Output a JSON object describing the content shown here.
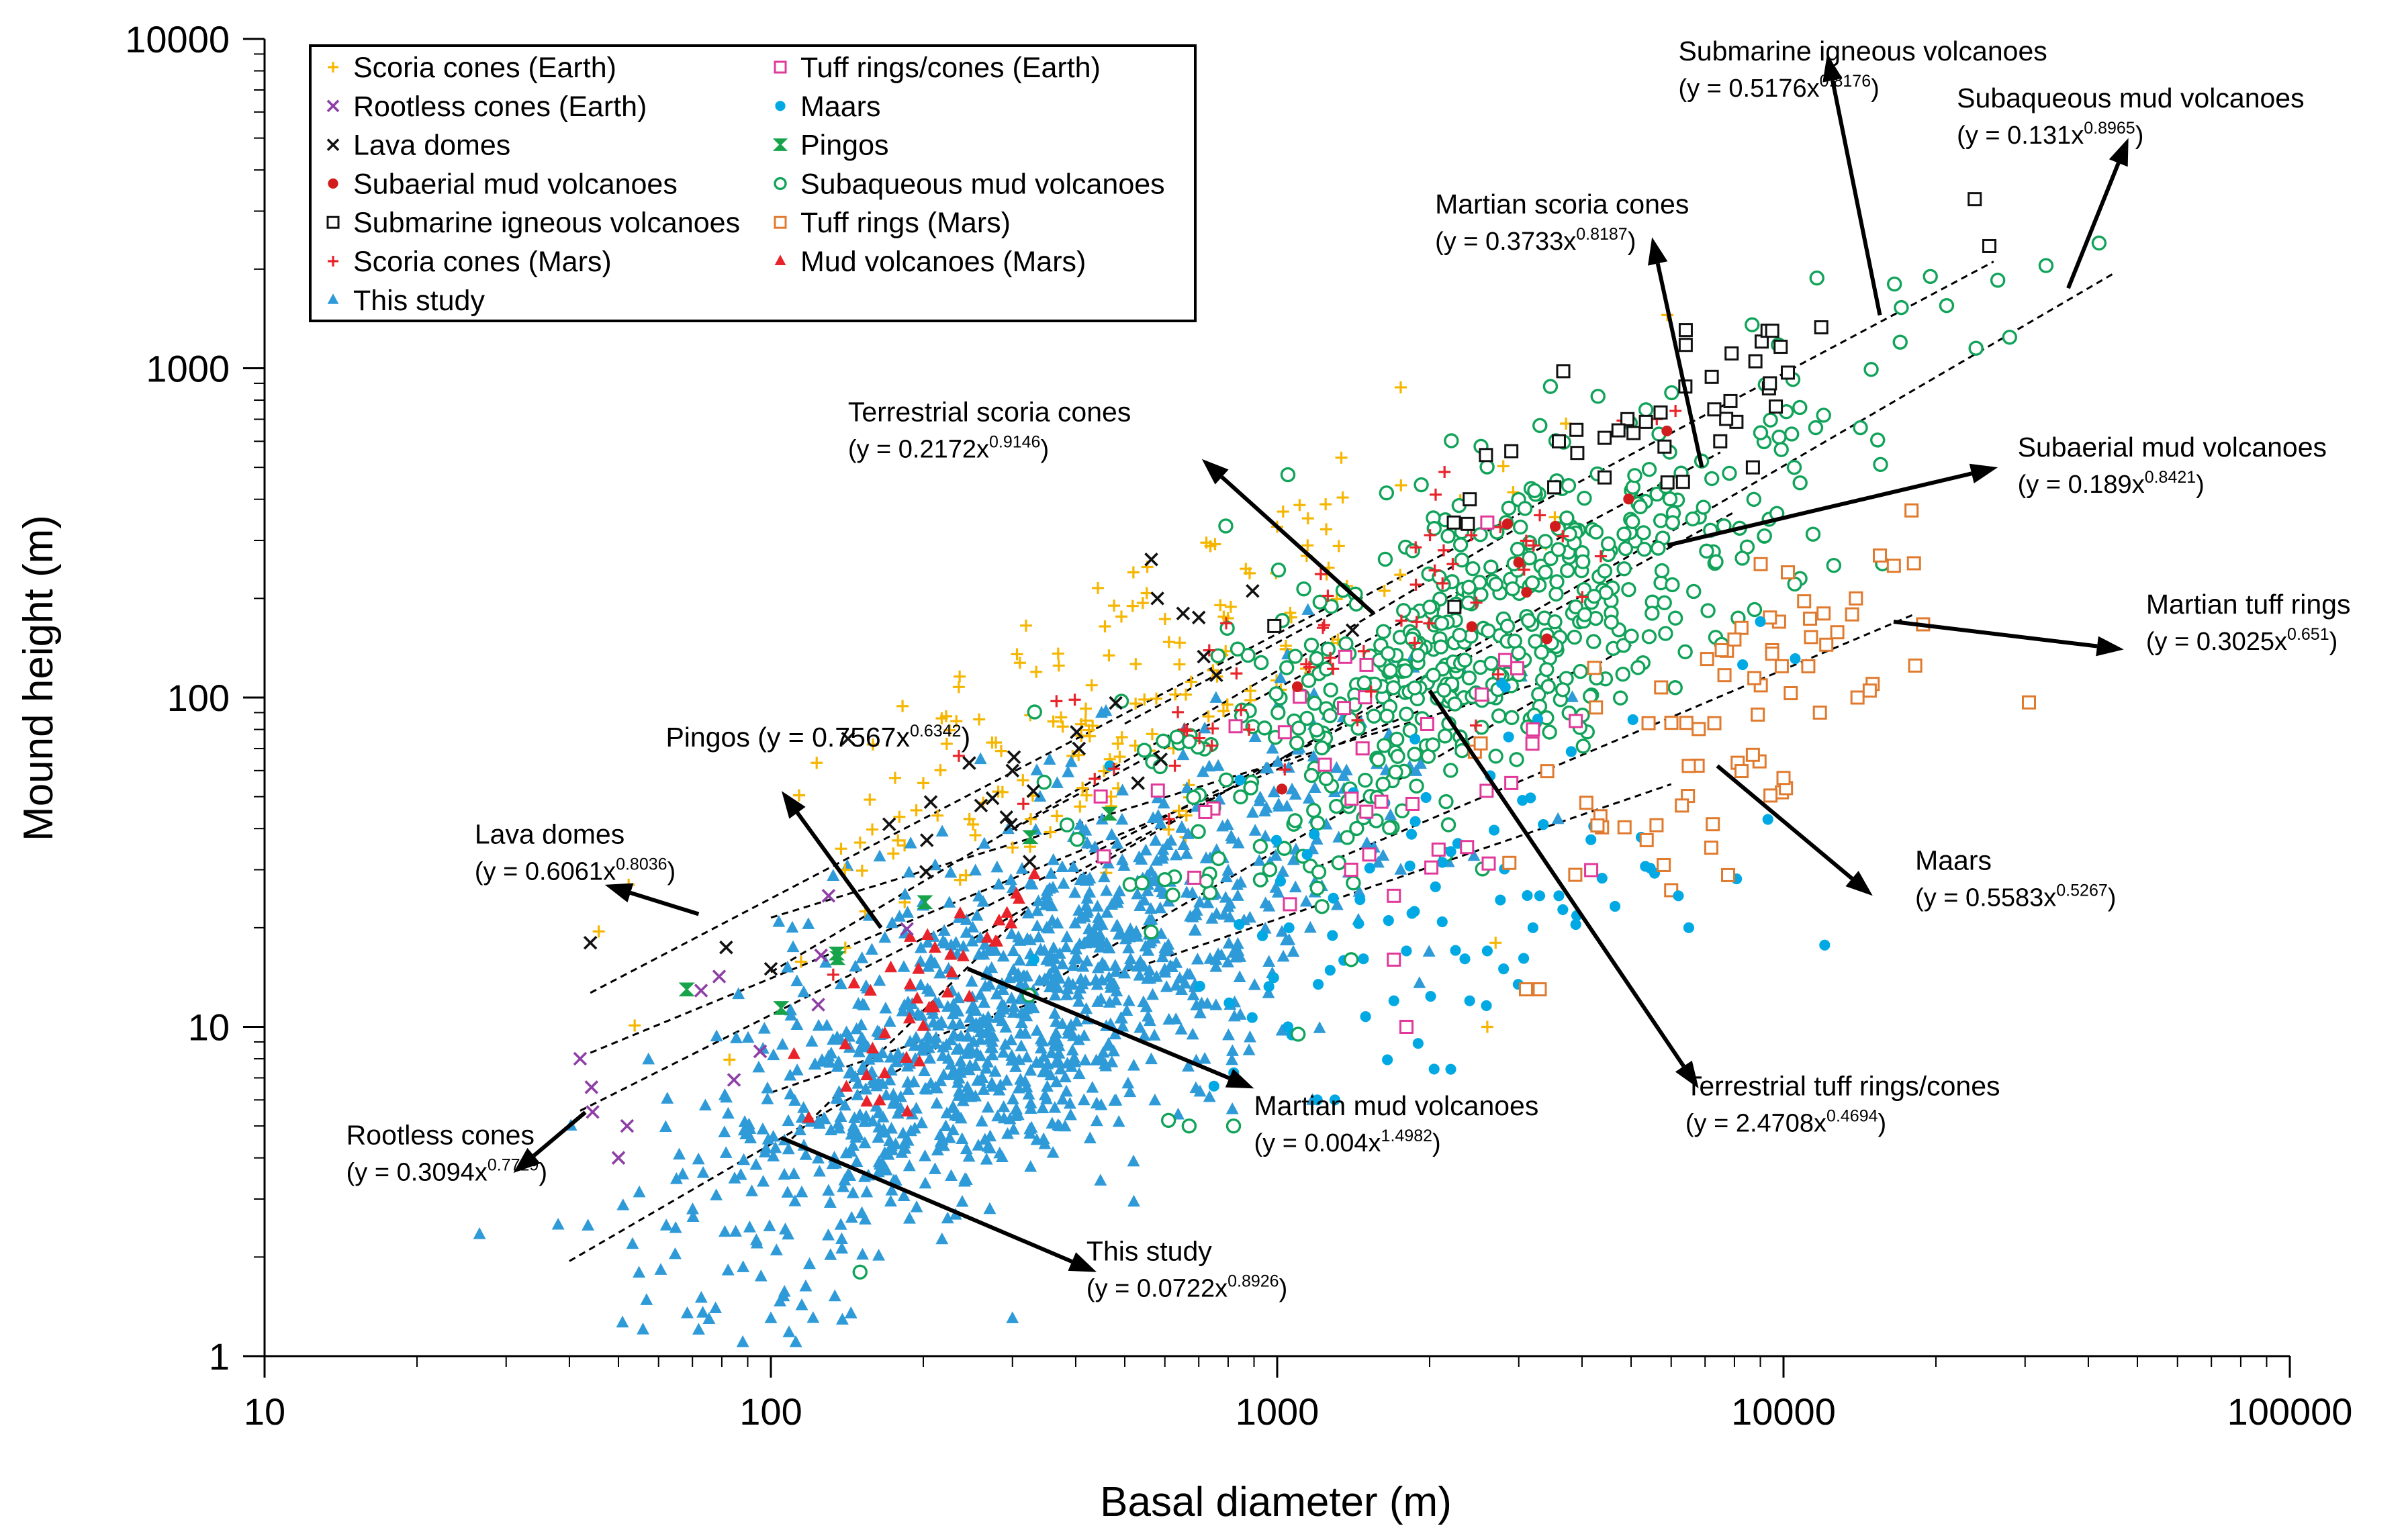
{
  "chart_data": {
    "type": "scatter",
    "title": "",
    "xlabel": "Basal diameter (m)",
    "ylabel": "Mound height (m)",
    "xscale": "log",
    "yscale": "log",
    "xlim": [
      10,
      100000
    ],
    "ylim": [
      1,
      10000
    ],
    "x_ticks": [
      "10",
      "100",
      "1000",
      "10000",
      "100000"
    ],
    "y_ticks": [
      "1",
      "10",
      "100",
      "1000",
      "10000"
    ],
    "grid": false,
    "legend_position": "top-left",
    "legend": [
      {
        "label": "Scoria cones (Earth)",
        "marker": "plus",
        "color": "#f6b600"
      },
      {
        "label": "Tuff rings/cones (Earth)",
        "marker": "open-square",
        "color": "#e0399a"
      },
      {
        "label": "Rootless cones (Earth)",
        "marker": "cross",
        "color": "#8e3fa6"
      },
      {
        "label": "Maars",
        "marker": "dot",
        "color": "#00a9e3"
      },
      {
        "label": "Lava domes",
        "marker": "cross",
        "color": "#111111"
      },
      {
        "label": "Pingos",
        "marker": "bowtie",
        "color": "#16a34a"
      },
      {
        "label": "Subaerial mud volcanoes",
        "marker": "dot",
        "color": "#d01c1c"
      },
      {
        "label": "Subaqueous mud volcanoes",
        "marker": "open-circle",
        "color": "#12a35a"
      },
      {
        "label": "Submarine igneous volcanoes",
        "marker": "open-square",
        "color": "#111111"
      },
      {
        "label": "Tuff rings (Mars)",
        "marker": "open-square",
        "color": "#e07a2e"
      },
      {
        "label": "Scoria cones (Mars)",
        "marker": "plus",
        "color": "#e8232a"
      },
      {
        "label": "Mud volcanoes (Mars)",
        "marker": "triangle",
        "color": "#e8232a"
      },
      {
        "label": "This study",
        "marker": "triangle",
        "color": "#2e9ad8"
      }
    ],
    "fits": [
      {
        "name": "Pingos",
        "a": 0.7567,
        "b": 0.6342,
        "x_range": [
          44,
          1900
        ]
      },
      {
        "name": "Lava domes",
        "a": 0.6061,
        "b": 0.8036,
        "x_range": [
          44,
          1300
        ]
      },
      {
        "name": "Rootless cones",
        "a": 0.3094,
        "b": 0.7729,
        "x_range": [
          42,
          1400
        ]
      },
      {
        "name": "Terrestrial scoria cones",
        "a": 0.2172,
        "b": 0.9146,
        "x_range": [
          100,
          3000
        ]
      },
      {
        "name": "Martian scoria cones",
        "a": 0.3733,
        "b": 0.8187,
        "x_range": [
          300,
          7500
        ]
      },
      {
        "name": "Submarine igneous volcanoes",
        "a": 0.5176,
        "b": 0.8176,
        "x_range": [
          500,
          26000
        ]
      },
      {
        "name": "Subaqueous mud volcanoes",
        "a": 0.131,
        "b": 0.8965,
        "x_range": [
          250,
          45000
        ]
      },
      {
        "name": "Subaerial mud volcanoes",
        "a": 0.189,
        "b": 0.8421,
        "x_range": [
          400,
          8000
        ]
      },
      {
        "name": "Martian tuff rings",
        "a": 0.3025,
        "b": 0.651,
        "x_range": [
          1200,
          18000
        ]
      },
      {
        "name": "Maars",
        "a": 0.5583,
        "b": 0.5267,
        "x_range": [
          100,
          6000
        ]
      },
      {
        "name": "Terrestrial tuff rings/cones",
        "a": 2.4708,
        "b": 0.4694,
        "x_range": [
          100,
          4000
        ]
      },
      {
        "name": "Martian mud volcanoes",
        "a": 0.004,
        "b": 1.4982,
        "x_range": [
          110,
          320
        ]
      },
      {
        "name": "This study",
        "a": 0.0722,
        "b": 0.8926,
        "x_range": [
          40,
          5000
        ]
      }
    ],
    "annotations": [
      {
        "name": "Submarine igneous volcanoes",
        "eq_prefix": "(y = 0.5176x",
        "exponent": "0.8176",
        "eq_suffix": ")",
        "arrow_from": [
          15500,
          1450
        ],
        "arrow_to": [
          12200,
          9000
        ],
        "label_anchor": [
          6200,
          8600
        ]
      },
      {
        "name": "Subaqueous mud volcanoes",
        "eq_prefix": "(y = 0.131x",
        "exponent": "0.8965",
        "eq_suffix": ")",
        "arrow_from": [
          36500,
          1750
        ],
        "arrow_to": [
          48000,
          5000
        ],
        "label_anchor": [
          22000,
          6200
        ]
      },
      {
        "name": "Martian scoria cones",
        "eq_prefix": "(y = 0.3733x",
        "exponent": "0.8187",
        "eq_suffix": ")",
        "arrow_from": [
          6900,
          500
        ],
        "arrow_to": [
          5500,
          2500
        ],
        "label_anchor": [
          2050,
          2950
        ]
      },
      {
        "name": "Terrestrial scoria cones",
        "eq_prefix": "(y = 0.2172x",
        "exponent": "0.9146",
        "eq_suffix": ")",
        "arrow_from": [
          1550,
          180
        ],
        "arrow_to": [
          710,
          530
        ],
        "label_anchor": [
          142,
          690
        ]
      },
      {
        "name": "Subaerial mud volcanoes",
        "eq_prefix": "(y = 0.189x",
        "exponent": "0.8421",
        "eq_suffix": ")",
        "arrow_from": [
          5900,
          290
        ],
        "arrow_to": [
          26500,
          500
        ],
        "label_anchor": [
          29000,
          540
        ]
      },
      {
        "name": "Martian tuff rings",
        "eq_prefix": "(y = 0.3025x",
        "exponent": "0.651",
        "eq_suffix": ")",
        "arrow_from": [
          16500,
          170
        ],
        "arrow_to": [
          47000,
          140
        ],
        "label_anchor": [
          52000,
          180
        ]
      },
      {
        "name": "Pingos",
        "eq_prefix": "Pingos (y = 0.7567x",
        "exponent": "0.6342",
        "eq_suffix": ")",
        "arrow_from": [
          165,
          20
        ],
        "arrow_to": [
          105,
          52
        ],
        "label_anchor": [
          62,
          71
        ]
      },
      {
        "name": "Lava domes",
        "eq_prefix": "(y = 0.6061x",
        "exponent": "0.8036",
        "eq_suffix": ")",
        "arrow_from": [
          72,
          22
        ],
        "arrow_to": [
          47,
          27
        ],
        "label_anchor": [
          26,
          36
        ]
      },
      {
        "name": "Maars",
        "eq_prefix": "(y = 0.5583x",
        "exponent": "0.5267",
        "eq_suffix": ")",
        "arrow_from": [
          7400,
          62
        ],
        "arrow_to": [
          15000,
          25
        ],
        "label_anchor": [
          18200,
          30
        ]
      },
      {
        "name": "Terrestrial tuff rings/cones",
        "eq_prefix": "(y = 2.4708x",
        "exponent": "0.4694",
        "eq_suffix": ")",
        "arrow_from": [
          2000,
          105
        ],
        "arrow_to": [
          6800,
          6.5
        ],
        "label_anchor": [
          6400,
          6.2
        ]
      },
      {
        "name": "Martian mud volcanoes",
        "eq_prefix": "(y = 0.004x",
        "exponent": "1.4982",
        "eq_suffix": ")",
        "arrow_from": [
          245,
          15
        ],
        "arrow_to": [
          900,
          6.5
        ],
        "label_anchor": [
          900,
          5.4
        ]
      },
      {
        "name": "Rootless cones",
        "eq_prefix": "(y = 0.3094x",
        "exponent": "0.7729",
        "eq_suffix": ")",
        "arrow_from": [
          43,
          5.5
        ],
        "arrow_to": [
          31,
          3.6
        ],
        "label_anchor": [
          14.5,
          4.4
        ]
      },
      {
        "name": "This study",
        "eq_prefix": "(y = 0.0722x",
        "exponent": "0.8926",
        "eq_suffix": ")",
        "arrow_from": [
          105,
          4.6
        ],
        "arrow_to": [
          440,
          1.8
        ],
        "label_anchor": [
          420,
          1.95
        ]
      }
    ],
    "series": [
      {
        "name": "Scoria cones (Earth)",
        "marker": "plus",
        "color": "#f6b600",
        "count": 170,
        "center": [
          450,
          90
        ],
        "spread_x": 0.38,
        "slope": 0.85,
        "spread_y": 0.2
      },
      {
        "name": "This study",
        "marker": "triangle",
        "color": "#2e9ad8",
        "count": 1150,
        "center": [
          310,
          11
        ],
        "spread_x": 0.34,
        "slope": 0.9,
        "spread_y": 0.27
      },
      {
        "name": "Subaqueous mud volcanoes",
        "marker": "open-circle",
        "color": "#12a35a",
        "count": 520,
        "center": [
          2600,
          150
        ],
        "spread_x": 0.33,
        "slope": 0.85,
        "spread_y": 0.24
      },
      {
        "name": "Maars",
        "marker": "dot",
        "color": "#00a9e3",
        "count": 85,
        "center": [
          2000,
          26
        ],
        "spread_x": 0.3,
        "slope": 0.5,
        "spread_y": 0.28
      },
      {
        "name": "Tuff rings/cones (Earth)",
        "marker": "open-square",
        "color": "#e0399a",
        "count": 32,
        "center": [
          1500,
          55
        ],
        "spread_x": 0.28,
        "slope": 0.45,
        "spread_y": 0.28
      },
      {
        "name": "Tuff rings (Mars)",
        "marker": "open-square",
        "color": "#e07a2e",
        "count": 55,
        "center": [
          8000,
          90
        ],
        "spread_x": 0.22,
        "slope": 0.65,
        "spread_y": 0.22
      },
      {
        "name": "Scoria cones (Mars)",
        "marker": "plus",
        "color": "#e8232a",
        "count": 60,
        "center": [
          1700,
          170
        ],
        "spread_x": 0.32,
        "slope": 0.82,
        "spread_y": 0.17
      },
      {
        "name": "Mud volcanoes (Mars)",
        "marker": "triangle",
        "color": "#e8232a",
        "count": 42,
        "center": [
          205,
          13
        ],
        "spread_x": 0.14,
        "slope": 1.5,
        "spread_y": 0.1
      },
      {
        "name": "Submarine igneous volcanoes",
        "marker": "open-square",
        "color": "#111111",
        "count": 30,
        "center": [
          6500,
          700
        ],
        "spread_x": 0.27,
        "slope": 0.82,
        "spread_y": 0.14
      },
      {
        "name": "Subaerial mud volcanoes",
        "marker": "dot",
        "color": "#d01c1c",
        "count": 10,
        "center": [
          3200,
          190
        ],
        "spread_x": 0.3,
        "slope": 0.84,
        "spread_y": 0.16
      },
      {
        "name": "Pingos",
        "marker": "bowtie",
        "color": "#16a34a",
        "count": 7,
        "center": [
          170,
          20
        ],
        "spread_x": 0.2,
        "slope": 0.63,
        "spread_y": 0.12
      },
      {
        "name": "Lava domes",
        "marker": "cross",
        "color": "#111111",
        "count": 22,
        "center": [
          380,
          70
        ],
        "spread_x": 0.25,
        "slope": 0.8,
        "spread_y": 0.13
      },
      {
        "name": "Rootless cones (Earth)",
        "marker": "cross",
        "color": "#8e3fa6",
        "count": 9,
        "center": [
          110,
          11
        ],
        "spread_x": 0.3,
        "slope": 0.77,
        "spread_y": 0.2
      }
    ],
    "fixed_points": [
      {
        "series": "Subaqueous mud volcanoes",
        "points": [
          [
            42000,
            2400
          ],
          [
            33000,
            2050
          ],
          [
            26500,
            1850
          ],
          [
            24000,
            1150
          ],
          [
            19500,
            1900
          ],
          [
            17000,
            1200
          ],
          [
            12000,
            720
          ],
          [
            10500,
            500
          ],
          [
            21000,
            1550
          ]
        ]
      },
      {
        "series": "Submarine igneous volcanoes",
        "points": [
          [
            25500,
            2350
          ],
          [
            9300,
            1300
          ],
          [
            9500,
            1300
          ],
          [
            10200,
            970
          ],
          [
            9400,
            900
          ],
          [
            8800,
            1050
          ],
          [
            7300,
            750
          ],
          [
            8700,
            500
          ],
          [
            3900,
            650
          ],
          [
            2900,
            560
          ],
          [
            2400,
            400
          ],
          [
            3600,
            600
          ],
          [
            5900,
            450
          ],
          [
            6400,
            880
          ],
          [
            7500,
            600
          ]
        ]
      },
      {
        "series": "Tuff rings (Mars)",
        "points": [
          [
            17900,
            370
          ],
          [
            15500,
            270
          ],
          [
            13900,
            200
          ],
          [
            12000,
            180
          ],
          [
            10200,
            240
          ],
          [
            9800,
            170
          ],
          [
            15000,
            110
          ],
          [
            14000,
            100
          ],
          [
            11800,
            90
          ],
          [
            8000,
            150
          ],
          [
            8700,
            67
          ],
          [
            10000,
            57
          ],
          [
            6500,
            62
          ],
          [
            6300,
            47
          ],
          [
            7200,
            35
          ],
          [
            3300,
            13
          ],
          [
            3100,
            13
          ],
          [
            5800,
            31
          ],
          [
            6000,
            26
          ],
          [
            14800,
            105
          ],
          [
            9400,
            175
          ]
        ]
      },
      {
        "series": "Lava domes",
        "points": [
          [
            44,
            18
          ],
          [
            142,
            75
          ],
          [
            580,
            200
          ],
          [
            700,
            175
          ],
          [
            100,
            15
          ],
          [
            260,
            47
          ],
          [
            300,
            60
          ],
          [
            330,
            52
          ]
        ]
      },
      {
        "series": "Maars",
        "points": [
          [
            3200,
            20
          ],
          [
            3600,
            25
          ],
          [
            6500,
            20
          ],
          [
            6200,
            25
          ],
          [
            1300,
            6
          ],
          [
            1200,
            6
          ],
          [
            1700,
            12
          ],
          [
            1800,
            17
          ],
          [
            2400,
            12
          ],
          [
            2600,
            17
          ],
          [
            9000,
            170
          ],
          [
            3300,
            25
          ],
          [
            1050,
            10
          ],
          [
            2800,
            15
          ]
        ]
      },
      {
        "series": "Rootless cones (Earth)",
        "points": [
          [
            42,
            8
          ],
          [
            52,
            5
          ],
          [
            50,
            4
          ],
          [
            130,
            25
          ]
        ]
      },
      {
        "series": "This study",
        "points": [
          [
            72,
            1.2
          ],
          [
            88,
            1.1
          ],
          [
            100,
            1.3
          ],
          [
            112,
            1.1
          ],
          [
            300,
            1.3
          ],
          [
            38,
            2.5
          ]
        ]
      },
      {
        "series": "Tuff rings/cones (Earth)",
        "points": [
          [
            1800,
            10
          ],
          [
            1700,
            16
          ],
          [
            1700,
            25
          ],
          [
            1400,
            30
          ],
          [
            2900,
            55
          ],
          [
            3200,
            80
          ],
          [
            1500,
            45
          ],
          [
            2600,
            340
          ]
        ]
      },
      {
        "series": "Subaqueous mud volcanoes",
        "points": [
          [
            150,
            1.8
          ],
          [
            670,
            5
          ],
          [
            820,
            5
          ],
          [
            610,
            5.2
          ],
          [
            1400,
            16
          ],
          [
            1100,
            9.5
          ],
          [
            600,
            28
          ]
        ]
      },
      {
        "series": "Scoria cones (Earth)",
        "points": [
          [
            1000,
            330
          ],
          [
            1150,
            350
          ],
          [
            2600,
            10
          ],
          [
            2700,
            18
          ],
          [
            520,
            240
          ],
          [
            200,
            55
          ],
          [
            140,
            30
          ]
        ]
      }
    ]
  }
}
